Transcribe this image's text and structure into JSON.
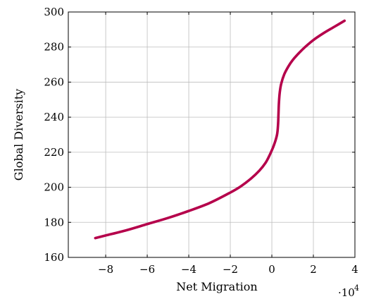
{
  "chart_data": {
    "type": "line",
    "title": "",
    "xlabel": "Net Migration",
    "ylabel": "Global Diversity",
    "x_multiplier_label": "·10",
    "x_multiplier_exponent": "4",
    "xlim": [
      -9.8,
      4.0
    ],
    "ylim": [
      160,
      300
    ],
    "x_ticks": [
      -8,
      -6,
      -4,
      -2,
      0,
      2,
      4
    ],
    "x_tick_labels": [
      "−8",
      "−6",
      "−4",
      "−2",
      "0",
      "2",
      "4"
    ],
    "y_ticks": [
      160,
      180,
      200,
      220,
      240,
      260,
      280,
      300
    ],
    "y_tick_labels": [
      "160",
      "180",
      "200",
      "220",
      "240",
      "260",
      "280",
      "300"
    ],
    "grid": true,
    "line_color": "#b5004b",
    "series": [
      {
        "x": [
          -8.5,
          -8.0,
          -7.0,
          -6.0,
          -5.0,
          -4.0,
          -3.0,
          -2.0,
          -1.5,
          -1.0,
          -0.6,
          -0.3,
          -0.1,
          0.1,
          0.25,
          0.3,
          0.32,
          0.34,
          0.38,
          0.45,
          0.6,
          0.8,
          1.0,
          1.3,
          1.6,
          2.0,
          2.5,
          3.0,
          3.5
        ],
        "y": [
          171,
          172.5,
          175.5,
          179,
          182.5,
          186.5,
          191,
          197,
          200.5,
          205,
          209.5,
          214,
          218.5,
          224,
          230,
          236,
          242,
          248,
          254,
          259,
          264.5,
          269,
          272.5,
          276.5,
          280,
          284,
          288,
          291.5,
          295
        ]
      }
    ]
  }
}
